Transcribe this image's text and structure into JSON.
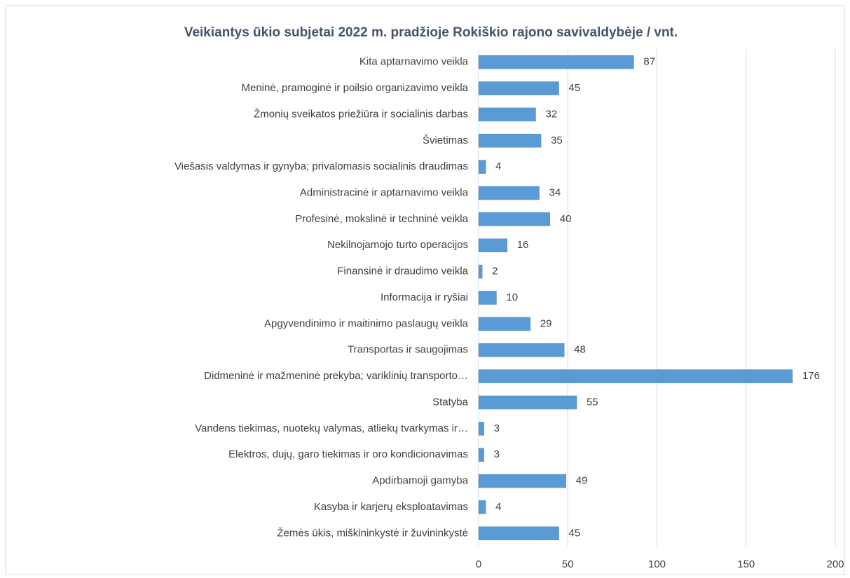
{
  "chart_data": {
    "type": "bar",
    "orientation": "horizontal",
    "title": "Veikiantys ūkio subjetai 2022 m. pradžioje Rokiškio rajono savivaldybėje / vnt.",
    "categories": [
      "Kita aptarnavimo veikla",
      "Meninė, pramoginė ir poilsio organizavimo veikla",
      "Žmonių sveikatos priežiūra ir socialinis darbas",
      "Švietimas",
      "Viešasis valdymas ir gynyba; privalomasis socialinis draudimas",
      "Administracinė ir aptarnavimo veikla",
      "Profesinė, mokslinė ir techninė veikla",
      "Nekilnojamojo turto operacijos",
      "Finansinė ir draudimo veikla",
      "Informacija ir ryšiai",
      "Apgyvendinimo ir maitinimo paslaugų veikla",
      "Transportas ir saugojimas",
      "Didmeninė ir mažmeninė prekyba; variklinių transporto…",
      "Statyba",
      "Vandens tiekimas, nuotekų valymas, atliekų tvarkymas ir…",
      "Elektros, dujų, garo tiekimas ir oro kondicionavimas",
      "Apdirbamoji gamyba",
      "Kasyba ir karjerų eksploatavimas",
      "Žemės ūkis, miškininkystė ir žuvininkystė"
    ],
    "values": [
      87,
      45,
      32,
      35,
      4,
      34,
      40,
      16,
      2,
      10,
      29,
      48,
      176,
      55,
      3,
      3,
      49,
      4,
      45
    ],
    "color": "#5b9bd5",
    "xlim": [
      0,
      200
    ],
    "xticks": [
      0,
      50,
      100,
      150,
      200
    ],
    "grid": true
  }
}
